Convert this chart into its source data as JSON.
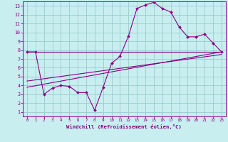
{
  "xlabel": "Windchill (Refroidissement éolien,°C)",
  "bg_color": "#c8eef0",
  "line_color": "#880088",
  "grid_color": "#99cccc",
  "xlim": [
    -0.5,
    23.5
  ],
  "ylim": [
    0.5,
    13.5
  ],
  "xticks": [
    0,
    1,
    2,
    3,
    4,
    5,
    6,
    7,
    8,
    9,
    10,
    11,
    12,
    13,
    14,
    15,
    16,
    17,
    18,
    19,
    20,
    21,
    22,
    23
  ],
  "yticks": [
    1,
    2,
    3,
    4,
    5,
    6,
    7,
    8,
    9,
    10,
    11,
    12,
    13
  ],
  "main_line": {
    "x": [
      0,
      1,
      2,
      3,
      4,
      5,
      6,
      7,
      8,
      9,
      10,
      11,
      12,
      13,
      14,
      15,
      16,
      17,
      18,
      19,
      20,
      21,
      22,
      23
    ],
    "y": [
      7.8,
      7.8,
      3.0,
      3.7,
      4.0,
      3.9,
      3.2,
      3.2,
      1.2,
      3.8,
      6.5,
      7.3,
      9.6,
      12.7,
      13.1,
      13.4,
      12.7,
      12.3,
      10.6,
      9.5,
      9.5,
      9.8,
      8.8,
      7.8
    ]
  },
  "trend_lines": [
    {
      "x": [
        0,
        23
      ],
      "y": [
        7.8,
        7.8
      ]
    },
    {
      "x": [
        0,
        23
      ],
      "y": [
        3.8,
        7.8
      ]
    },
    {
      "x": [
        0,
        23
      ],
      "y": [
        4.5,
        7.5
      ]
    }
  ]
}
